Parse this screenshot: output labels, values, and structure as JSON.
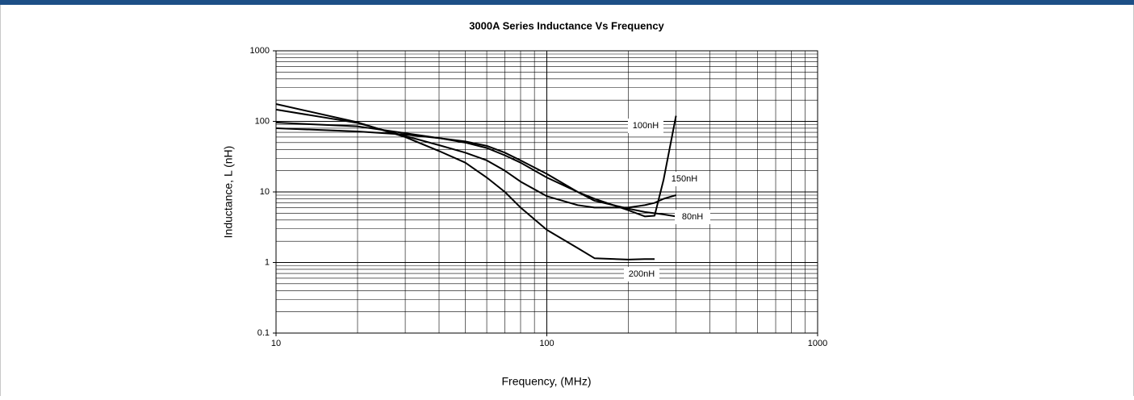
{
  "chart_data": {
    "type": "line",
    "title": "3000A Series Inductance Vs Frequency",
    "x_label": "Frequency, (MHz)",
    "y_label": "Inductance, L (nH)",
    "x": [
      10,
      20,
      30,
      40,
      50,
      60,
      70,
      80,
      100,
      130,
      150,
      200,
      230,
      250,
      270,
      300
    ],
    "series": [
      {
        "name": "100nH",
        "color": "#000000",
        "values": [
          96,
          85,
          68,
          58,
          50,
          42,
          33,
          26,
          16,
          10,
          8,
          5.5,
          4.5,
          4.6,
          15,
          120
        ]
      },
      {
        "name": "150nH",
        "color": "#000000",
        "values": [
          147,
          95,
          62,
          46,
          36,
          28,
          20,
          14,
          8.7,
          6.5,
          6,
          6,
          6.5,
          7,
          8,
          9
        ]
      },
      {
        "name": "80nH",
        "color": "#000000",
        "values": [
          80,
          72,
          65,
          58,
          52,
          45,
          36,
          28,
          18,
          10,
          7.5,
          5.8,
          5.2,
          5,
          4.8,
          4.5
        ]
      },
      {
        "name": "200nH",
        "color": "#000000",
        "values": [
          176,
          97,
          60,
          38,
          26,
          16,
          10,
          6,
          2.9,
          1.6,
          1.15,
          1.1,
          1.12,
          1.12,
          null,
          null
        ]
      }
    ],
    "xlim": [
      10,
      1000
    ],
    "ylim": [
      0.1,
      1000
    ],
    "xticks": [
      10,
      100,
      1000
    ],
    "yticks": [
      0.1,
      1,
      10,
      100,
      1000
    ],
    "xscale": "log",
    "yscale": "log",
    "grid": true
  }
}
